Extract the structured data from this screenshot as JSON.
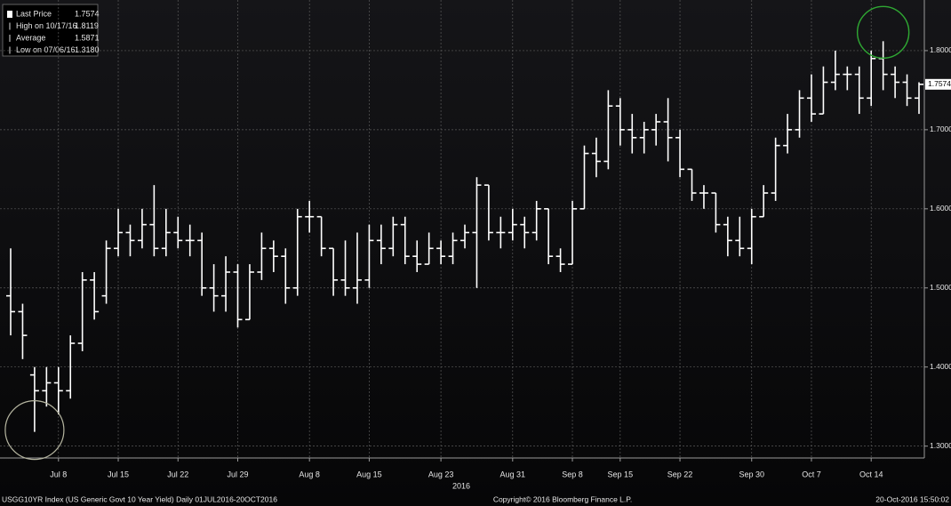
{
  "chart_data": {
    "type": "ohlc",
    "color": "#ffffff",
    "grid": true,
    "x_label": "2016",
    "categories": [
      null,
      null,
      null,
      null,
      "Jul 8",
      null,
      null,
      null,
      null,
      "Jul 15",
      null,
      null,
      null,
      null,
      "Jul 22",
      null,
      null,
      null,
      null,
      "Jul 29",
      null,
      null,
      null,
      null,
      null,
      "Aug 8",
      null,
      null,
      null,
      null,
      "Aug 15",
      null,
      null,
      null,
      null,
      null,
      "Aug 23",
      null,
      null,
      null,
      null,
      null,
      "Aug 31",
      null,
      null,
      null,
      null,
      "Sep 8",
      null,
      null,
      null,
      "Sep 15",
      null,
      null,
      null,
      null,
      "Sep 22",
      null,
      null,
      null,
      null,
      null,
      "Sep 30",
      null,
      null,
      null,
      null,
      "Oct 7",
      null,
      null,
      null,
      null,
      "Oct 14",
      null,
      null,
      null,
      null
    ],
    "open": [
      1.49,
      1.47,
      1.39,
      1.37,
      1.38,
      1.37,
      1.43,
      1.51,
      1.49,
      1.55,
      1.57,
      1.56,
      1.58,
      1.55,
      1.57,
      1.56,
      1.56,
      1.5,
      1.49,
      1.52,
      1.46,
      1.52,
      1.55,
      1.54,
      1.5,
      1.59,
      1.59,
      1.55,
      1.51,
      1.5,
      1.51,
      1.56,
      1.55,
      1.58,
      1.54,
      1.53,
      1.55,
      1.54,
      1.56,
      1.57,
      1.63,
      1.57,
      1.57,
      1.58,
      1.57,
      1.6,
      1.54,
      1.53,
      1.6,
      1.67,
      1.66,
      1.73,
      1.7,
      1.69,
      1.7,
      1.71,
      1.69,
      1.65,
      1.62,
      1.62,
      1.58,
      1.56,
      1.55,
      1.59,
      1.62,
      1.68,
      1.7,
      1.74,
      1.72,
      1.76,
      1.77,
      1.77,
      1.74,
      1.79,
      1.77,
      1.76,
      1.74
    ],
    "high": [
      1.55,
      1.48,
      1.4,
      1.4,
      1.4,
      1.44,
      1.52,
      1.52,
      1.56,
      1.6,
      1.58,
      1.6,
      1.63,
      1.6,
      1.59,
      1.58,
      1.57,
      1.53,
      1.54,
      1.53,
      1.53,
      1.57,
      1.56,
      1.55,
      1.6,
      1.61,
      1.59,
      1.55,
      1.56,
      1.57,
      1.58,
      1.58,
      1.59,
      1.59,
      1.56,
      1.57,
      1.56,
      1.57,
      1.58,
      1.64,
      1.63,
      1.59,
      1.6,
      1.59,
      1.61,
      1.6,
      1.55,
      1.61,
      1.68,
      1.69,
      1.75,
      1.74,
      1.72,
      1.71,
      1.72,
      1.74,
      1.7,
      1.65,
      1.63,
      1.62,
      1.59,
      1.59,
      1.6,
      1.63,
      1.69,
      1.72,
      1.75,
      1.77,
      1.78,
      1.8,
      1.78,
      1.78,
      1.8,
      1.8119,
      1.78,
      1.77,
      1.76
    ],
    "low": [
      1.44,
      1.41,
      1.318,
      1.35,
      1.34,
      1.36,
      1.42,
      1.46,
      1.48,
      1.54,
      1.54,
      1.55,
      1.54,
      1.54,
      1.55,
      1.54,
      1.49,
      1.47,
      1.47,
      1.45,
      1.46,
      1.51,
      1.52,
      1.48,
      1.49,
      1.57,
      1.54,
      1.49,
      1.49,
      1.48,
      1.5,
      1.53,
      1.54,
      1.53,
      1.52,
      1.53,
      1.53,
      1.53,
      1.55,
      1.5,
      1.56,
      1.55,
      1.56,
      1.55,
      1.56,
      1.53,
      1.52,
      1.53,
      1.6,
      1.64,
      1.65,
      1.68,
      1.67,
      1.67,
      1.68,
      1.66,
      1.64,
      1.61,
      1.6,
      1.57,
      1.54,
      1.54,
      1.53,
      1.59,
      1.61,
      1.67,
      1.69,
      1.71,
      1.72,
      1.75,
      1.75,
      1.72,
      1.73,
      1.75,
      1.74,
      1.73,
      1.72
    ],
    "close": [
      1.47,
      1.44,
      1.37,
      1.38,
      1.37,
      1.43,
      1.51,
      1.47,
      1.55,
      1.57,
      1.56,
      1.58,
      1.55,
      1.57,
      1.56,
      1.56,
      1.5,
      1.49,
      1.52,
      1.46,
      1.52,
      1.55,
      1.54,
      1.5,
      1.59,
      1.59,
      1.55,
      1.51,
      1.5,
      1.51,
      1.56,
      1.55,
      1.58,
      1.54,
      1.53,
      1.55,
      1.54,
      1.56,
      1.57,
      1.63,
      1.57,
      1.57,
      1.58,
      1.57,
      1.6,
      1.54,
      1.53,
      1.6,
      1.67,
      1.66,
      1.73,
      1.7,
      1.69,
      1.7,
      1.71,
      1.69,
      1.65,
      1.62,
      1.62,
      1.58,
      1.56,
      1.55,
      1.59,
      1.62,
      1.68,
      1.7,
      1.74,
      1.72,
      1.76,
      1.77,
      1.77,
      1.74,
      1.79,
      1.77,
      1.76,
      1.74,
      1.7574
    ],
    "ylim": [
      1.285,
      1.864
    ],
    "yticks": [
      {
        "value": 1.3,
        "label": "1.3000"
      },
      {
        "value": 1.4,
        "label": "1.4000"
      },
      {
        "value": 1.5,
        "label": "1.5000"
      },
      {
        "value": 1.6,
        "label": "1.6000"
      },
      {
        "value": 1.7,
        "label": "1.7000"
      },
      {
        "value": 1.8,
        "label": "1.8000"
      }
    ],
    "legend": [
      {
        "label": "Last Price",
        "value": 1.7574
      },
      {
        "label": "High on 10/17/16",
        "value": 1.8119
      },
      {
        "label": "Average",
        "value": 1.5871
      },
      {
        "label": "Low on 07/06/16",
        "value": {
          "value": 1.318,
          "label": "1.3180"
        }
      }
    ],
    "footer": {
      "left": "USGG10YR Index (US Generic Govt 10 Year Yield)  Daily 01JUL2016-20OCT2016",
      "center": "Copyright© 2016 Bloomberg Finance L.P.",
      "right": "20-Oct-2016 15:50:02"
    }
  }
}
